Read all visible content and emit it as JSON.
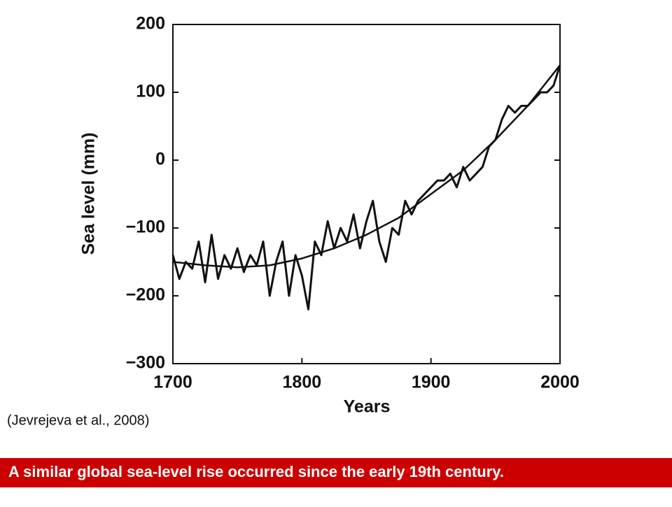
{
  "chart_data": {
    "type": "line",
    "ylabel": "Sea level (mm)",
    "xlabel": "Years",
    "source": "(Jevrejeva et al., 2008)",
    "caption": "A similar global sea-level rise occurred since the early 19th century.",
    "xlim": [
      1700,
      2000
    ],
    "xticks": [
      1700,
      1800,
      1900,
      2000
    ],
    "ylim": [
      -300,
      200
    ],
    "yticks": [
      {
        "value": -300,
        "label": "−300"
      },
      {
        "value": -200,
        "label": "−200"
      },
      {
        "value": -100,
        "label": "−100"
      },
      0,
      100,
      200
    ],
    "series": [
      {
        "color": "#111111",
        "x": [
          1700,
          1705,
          1710,
          1715,
          1720,
          1725,
          1730,
          1735,
          1740,
          1745,
          1750,
          1755,
          1760,
          1765,
          1770,
          1775,
          1780,
          1785,
          1790,
          1795,
          1800,
          1805,
          1810,
          1815,
          1820,
          1825,
          1830,
          1835,
          1840,
          1845,
          1850,
          1855,
          1860,
          1865,
          1870,
          1875,
          1880,
          1885,
          1890,
          1895,
          1900,
          1905,
          1910,
          1915,
          1920,
          1925,
          1930,
          1935,
          1940,
          1945,
          1950,
          1955,
          1960,
          1965,
          1970,
          1975,
          1980,
          1985,
          1990,
          1995,
          2000
        ],
        "values": [
          -140,
          -175,
          -150,
          -160,
          -120,
          -180,
          -110,
          -175,
          -140,
          -160,
          -130,
          -165,
          -140,
          -155,
          -120,
          -200,
          -150,
          -120,
          -200,
          -140,
          -170,
          -220,
          -120,
          -140,
          -90,
          -130,
          -100,
          -120,
          -80,
          -130,
          -90,
          -60,
          -120,
          -150,
          -100,
          -110,
          -60,
          -80,
          -60,
          -50,
          -40,
          -30,
          -30,
          -20,
          -40,
          -10,
          -30,
          -20,
          -10,
          20,
          30,
          60,
          80,
          70,
          80,
          80,
          90,
          100,
          100,
          110,
          140
        ]
      },
      {
        "color": "#111111",
        "x": [
          1700,
          1725,
          1750,
          1775,
          1800,
          1825,
          1850,
          1875,
          1900,
          1925,
          1950,
          1975,
          2000
        ],
        "values": [
          -150,
          -155,
          -158,
          -155,
          -145,
          -130,
          -110,
          -85,
          -50,
          -15,
          30,
          80,
          140
        ]
      }
    ]
  }
}
